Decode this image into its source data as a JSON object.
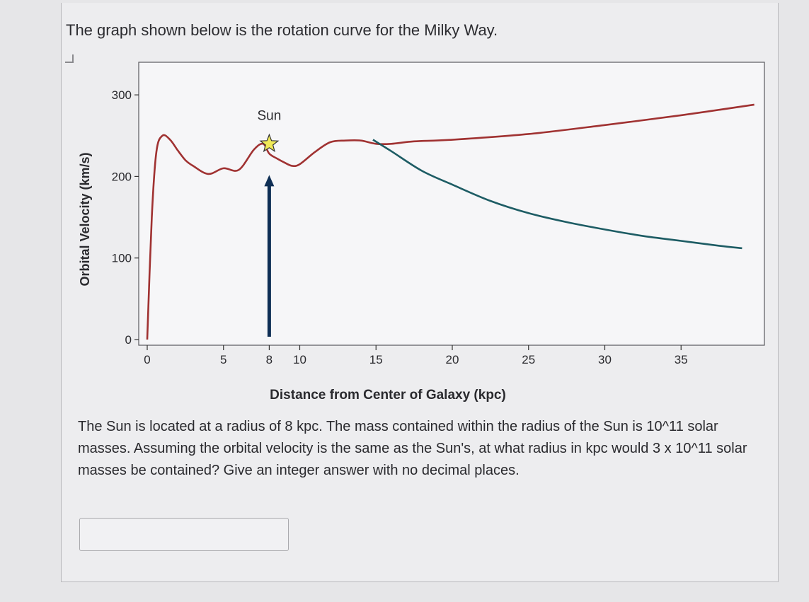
{
  "intro_text": "The graph shown below is the rotation curve for the Milky Way.",
  "question_text": "The Sun is located at a radius of 8 kpc. The mass contained within the radius of the Sun is 10^11 solar masses. Assuming the orbital velocity is the same as the Sun's, at what radius in kpc would 3 x 10^11 solar masses be contained? Give an integer answer with no decimal places.",
  "answer_field": {
    "value": "",
    "placeholder": ""
  },
  "colors": {
    "observed_curve": "#a03232",
    "keplerian_curve": "#1d5c64",
    "arrow": "#0f2f55",
    "star": "#f0ea58"
  },
  "chart_data": {
    "type": "line",
    "xlabel": "Distance from Center of Galaxy (kpc)",
    "ylabel": "Orbital Velocity (km/s)",
    "xlim": [
      0,
      40
    ],
    "ylim": [
      0,
      340
    ],
    "x_ticks": [
      0,
      5,
      8,
      10,
      15,
      20,
      25,
      30,
      35
    ],
    "y_ticks": [
      0,
      100,
      200,
      300
    ],
    "grid": false,
    "series": [
      {
        "color": "#a03232",
        "x": [
          0.0,
          0.3,
          0.6,
          1.0,
          1.5,
          2.0,
          2.5,
          3.0,
          4.0,
          5.0,
          6.0,
          7.0,
          7.6,
          8.0,
          8.5,
          9.0,
          9.5,
          10.0,
          11.0,
          12.0,
          13.0,
          14.0,
          15.0,
          16.0,
          17.5,
          20.0,
          25.0,
          30.0,
          35.0,
          39.8
        ],
        "y": [
          0,
          150,
          230,
          250,
          245,
          232,
          220,
          213,
          203,
          210,
          208,
          233,
          240,
          228,
          222,
          217,
          213,
          215,
          230,
          242,
          244,
          244,
          240,
          240,
          243,
          245,
          252,
          263,
          275,
          288
        ]
      },
      {
        "color": "#1d5c64",
        "x": [
          14.8,
          16.0,
          18.0,
          20.0,
          22.5,
          25.0,
          27.5,
          30.0,
          32.5,
          35.0,
          37.5,
          39.0
        ],
        "y": [
          245,
          231,
          207,
          190,
          170,
          155,
          144,
          135,
          127,
          121,
          115,
          112
        ]
      }
    ],
    "annotations": [
      {
        "text": "Sun",
        "x": 8,
        "y": 240,
        "marker": "star"
      }
    ],
    "arrow": {
      "x": 8,
      "from_y": 0,
      "to_y": 200
    }
  }
}
